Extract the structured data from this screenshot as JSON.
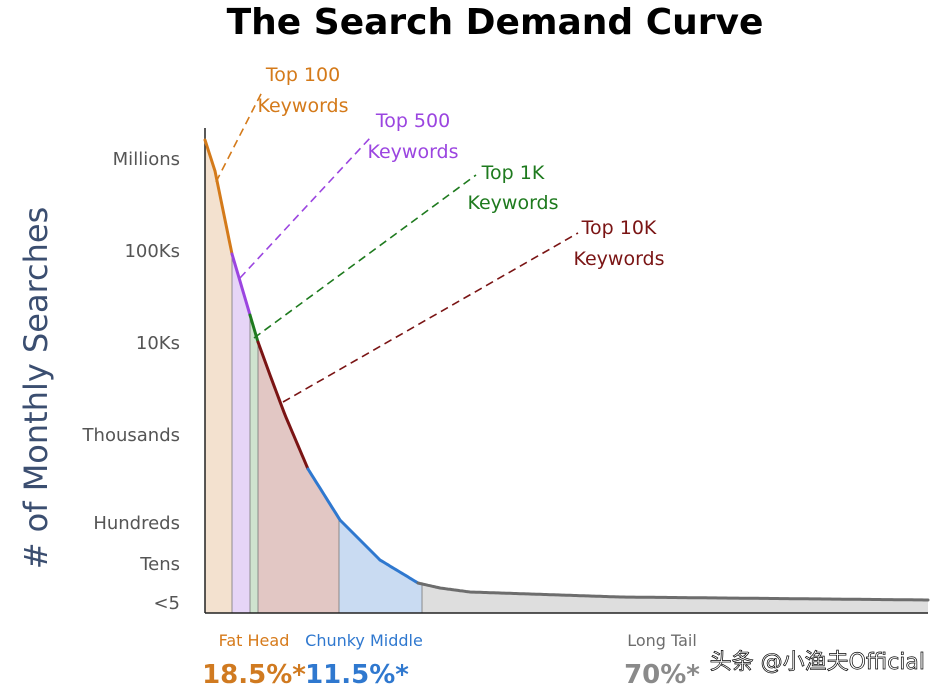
{
  "chart_data": {
    "type": "area",
    "title": "The Search Demand Curve",
    "ylabel": "# of Monthly Searches",
    "xlabel": "",
    "y_tick_labels": [
      "Millions",
      "100Ks",
      "10Ks",
      "Thousands",
      "Hundreds",
      "Tens",
      "<5"
    ],
    "x_range": [
      0,
      100
    ],
    "segments": [
      {
        "name": "Fat Head",
        "start": 0,
        "end": 18.5,
        "pct_label": "18.5%*",
        "color": "#d67a1a"
      },
      {
        "name": "Chunky Middle",
        "start": 18.5,
        "end": 30,
        "pct_label": "11.5%*",
        "color": "#2f78cf"
      },
      {
        "name": "Long Tail",
        "start": 30,
        "end": 100,
        "pct_label": "70%*",
        "color": "#6d6d6d"
      }
    ],
    "callouts": [
      {
        "line1": "Top 100",
        "line2": "Keywords",
        "color": "#d47a1a"
      },
      {
        "line1": "Top 500",
        "line2": "Keywords",
        "color": "#9b45e0"
      },
      {
        "line1": "Top 1K",
        "line2": "Keywords",
        "color": "#1e7a1e"
      },
      {
        "line1": "Top 10K",
        "line2": "Keywords",
        "color": "#7a1414"
      }
    ]
  },
  "watermark": "头条 @小渔夫Official"
}
